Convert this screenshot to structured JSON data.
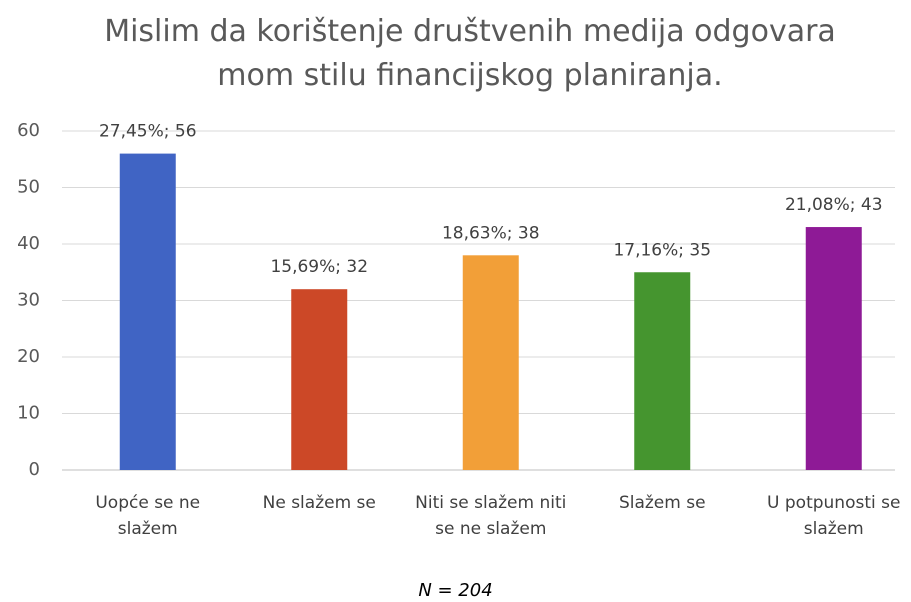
{
  "chart_data": {
    "type": "bar",
    "title": "Mislim da korištenje društvenih medija odgovara mom stilu financijskog planiranja.",
    "categories": [
      "Uopće se ne slažem",
      "Ne slažem se",
      "Niti se slažem niti se ne slažem",
      "Slažem se",
      "U potpunosti se slažem"
    ],
    "values": [
      56,
      32,
      38,
      35,
      43
    ],
    "value_labels": [
      "27,45%; 56",
      "15,69%; 32",
      "18,63%; 38",
      "17,16%; 35",
      "21,08%; 43"
    ],
    "colors": [
      "#4064c4",
      "#cc4827",
      "#f29f38",
      "#45952f",
      "#8e1a96"
    ],
    "ylim": [
      0,
      60
    ],
    "yticks": [
      0,
      10,
      20,
      30,
      40,
      50,
      60
    ],
    "grid": true,
    "note": "N = 204"
  }
}
